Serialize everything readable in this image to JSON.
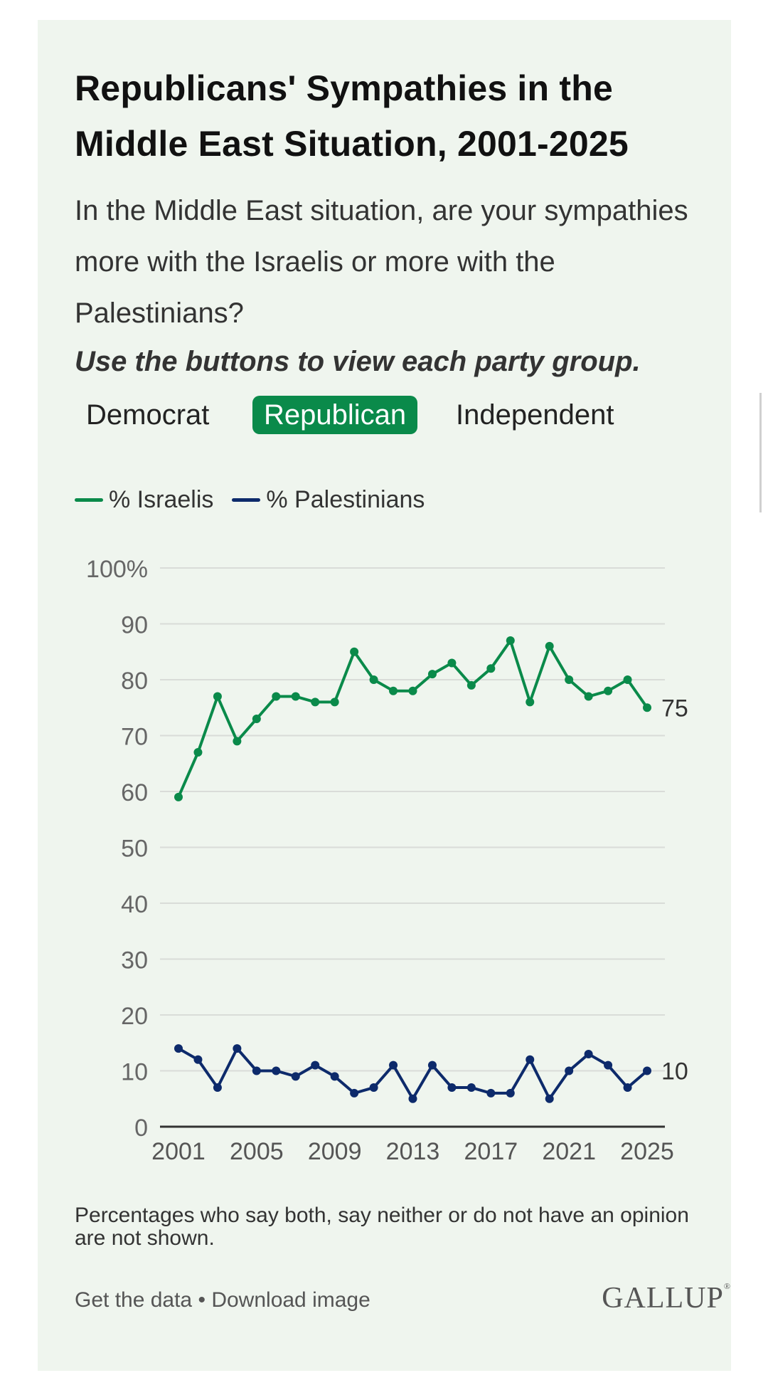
{
  "title": "Republicans' Sympathies in the Middle East Situation, 2001-2025",
  "subtitle": "In the Middle East situation, are your sympathies more with the Israelis or more with the Palestinians?",
  "instruction": "Use the buttons to view each party group.",
  "buttons": [
    {
      "label": "Democrat",
      "selected": false
    },
    {
      "label": "Republican",
      "selected": true
    },
    {
      "label": "Independent",
      "selected": false
    }
  ],
  "legend": {
    "israelis": "% Israelis",
    "palestinians": "% Palestinians"
  },
  "colors": {
    "israelis": "#0a8a4a",
    "palestinians": "#0d2a6b",
    "accent": "#0a8a4a",
    "background": "#eff5ee"
  },
  "chart_data": {
    "type": "line",
    "x": [
      2001,
      2002,
      2003,
      2004,
      2005,
      2006,
      2007,
      2008,
      2009,
      2010,
      2011,
      2012,
      2013,
      2014,
      2015,
      2016,
      2017,
      2018,
      2019,
      2020,
      2021,
      2022,
      2023,
      2024,
      2025
    ],
    "series": [
      {
        "name": "% Israelis",
        "values": [
          59,
          67,
          77,
          69,
          73,
          77,
          77,
          76,
          76,
          85,
          80,
          78,
          78,
          81,
          83,
          79,
          82,
          87,
          76,
          86,
          80,
          77,
          78,
          80,
          75
        ],
        "end_label": "75"
      },
      {
        "name": "% Palestinians",
        "values": [
          14,
          12,
          7,
          14,
          10,
          10,
          9,
          11,
          9,
          6,
          7,
          11,
          5,
          11,
          7,
          7,
          6,
          6,
          12,
          5,
          10,
          13,
          11,
          7,
          10
        ],
        "end_label": "10"
      }
    ],
    "y_ticks": [
      "0",
      "10",
      "20",
      "30",
      "40",
      "50",
      "60",
      "70",
      "80",
      "90",
      "100%"
    ],
    "x_ticks": [
      "2001",
      "2005",
      "2009",
      "2013",
      "2017",
      "2021",
      "2025"
    ],
    "ylim": [
      0,
      100
    ],
    "xlim": [
      2001,
      2025
    ],
    "grid": true
  },
  "footnote": "Percentages who say both, say neither or do not have an opinion are not shown.",
  "links": {
    "get_data": "Get the data",
    "separator": "•",
    "download": "Download image"
  },
  "logo": "GALLUP"
}
